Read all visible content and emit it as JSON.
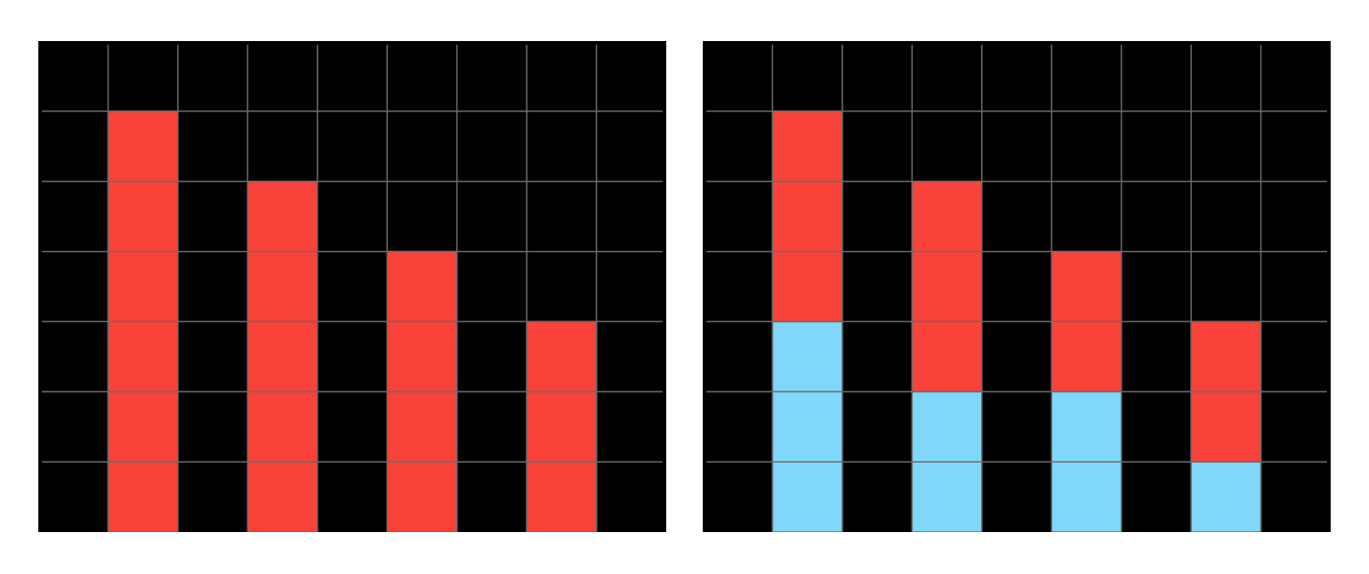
{
  "colors": {
    "background": "#000000",
    "gridline": "#6b6b6b",
    "red": "#f9423a",
    "blue": "#7fd7fa",
    "page": "#ffffff"
  },
  "grid": {
    "columns": 9,
    "rows": 7,
    "gridlines": true
  },
  "chart_data": [
    {
      "type": "bar",
      "stacked": false,
      "categories": [
        "",
        "",
        "",
        ""
      ],
      "ylim": [
        0,
        7
      ],
      "series": [
        {
          "color": "#f9423a",
          "values": [
            6,
            5,
            4,
            3
          ]
        }
      ]
    },
    {
      "type": "bar",
      "stacked": true,
      "categories": [
        "",
        "",
        "",
        ""
      ],
      "ylim": [
        0,
        7
      ],
      "series": [
        {
          "color": "#7fd7fa",
          "values": [
            3,
            2,
            2,
            1
          ]
        },
        {
          "color": "#f9423a",
          "values": [
            3,
            3,
            2,
            2
          ]
        }
      ]
    }
  ]
}
